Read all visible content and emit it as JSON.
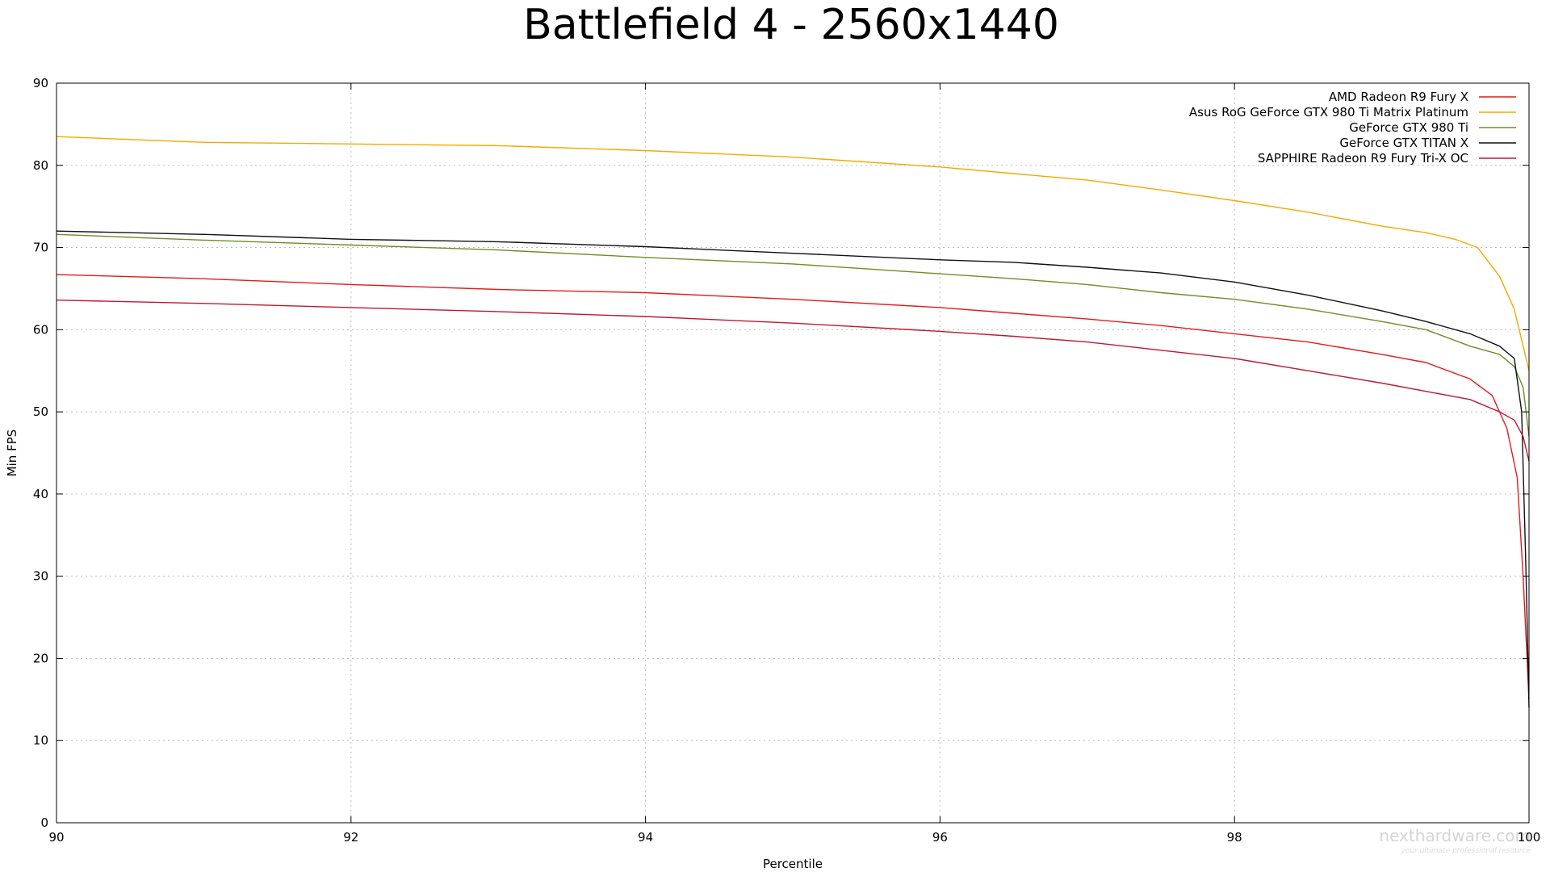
{
  "watermark": {
    "text": "nexthardware.com",
    "tagline": "your ultimate professional resource"
  },
  "chart_data": {
    "type": "line",
    "title": "Battlefield 4 - 2560x1440",
    "xlabel": "Percentile",
    "ylabel": "Min FPS",
    "xlim": [
      90,
      100
    ],
    "ylim": [
      0,
      90
    ],
    "xticks": [
      "90",
      "92",
      "94",
      "96",
      "98",
      "100"
    ],
    "yticks": [
      "0",
      "10",
      "20",
      "30",
      "40",
      "50",
      "60",
      "70",
      "80",
      "90"
    ],
    "grid": true,
    "legend_position": "top-right",
    "series": [
      {
        "name": "AMD Radeon R9 Fury X",
        "color": "#e41a1c",
        "points": [
          [
            90,
            66.7
          ],
          [
            91,
            66.2
          ],
          [
            92,
            65.5
          ],
          [
            93,
            64.9
          ],
          [
            94,
            64.5
          ],
          [
            95,
            63.7
          ],
          [
            96,
            62.7
          ],
          [
            96.5,
            62.0
          ],
          [
            97,
            61.3
          ],
          [
            97.5,
            60.5
          ],
          [
            98,
            59.5
          ],
          [
            98.5,
            58.5
          ],
          [
            99,
            57.0
          ],
          [
            99.3,
            56.0
          ],
          [
            99.6,
            54.0
          ],
          [
            99.75,
            52.0
          ],
          [
            99.85,
            48.0
          ],
          [
            99.92,
            42.0
          ],
          [
            99.96,
            30.0
          ],
          [
            100,
            15.0
          ]
        ]
      },
      {
        "name": "Asus RoG GeForce GTX 980 Ti Matrix Platinum",
        "color": "#f5a800",
        "points": [
          [
            90,
            83.5
          ],
          [
            91,
            82.8
          ],
          [
            92,
            82.6
          ],
          [
            93,
            82.4
          ],
          [
            94,
            81.8
          ],
          [
            95,
            81.0
          ],
          [
            96,
            79.8
          ],
          [
            96.5,
            79.0
          ],
          [
            97,
            78.2
          ],
          [
            97.5,
            77.0
          ],
          [
            98,
            75.7
          ],
          [
            98.5,
            74.3
          ],
          [
            99,
            72.6
          ],
          [
            99.3,
            71.8
          ],
          [
            99.5,
            71.0
          ],
          [
            99.65,
            70.0
          ],
          [
            99.8,
            66.5
          ],
          [
            99.9,
            62.5
          ],
          [
            99.96,
            58.0
          ],
          [
            100,
            55.0
          ]
        ]
      },
      {
        "name": "GeForce GTX 980 Ti",
        "color": "#6b8e23",
        "points": [
          [
            90,
            71.6
          ],
          [
            91,
            70.9
          ],
          [
            92,
            70.3
          ],
          [
            93,
            69.7
          ],
          [
            94,
            68.8
          ],
          [
            95,
            68.0
          ],
          [
            96,
            66.8
          ],
          [
            96.5,
            66.2
          ],
          [
            97,
            65.5
          ],
          [
            97.5,
            64.5
          ],
          [
            98,
            63.7
          ],
          [
            98.5,
            62.5
          ],
          [
            99,
            61.0
          ],
          [
            99.3,
            60.0
          ],
          [
            99.6,
            58.0
          ],
          [
            99.8,
            57.0
          ],
          [
            99.9,
            55.5
          ],
          [
            99.96,
            53.0
          ],
          [
            100,
            47.0
          ]
        ]
      },
      {
        "name": "GeForce GTX TITAN X",
        "color": "#111111",
        "points": [
          [
            90,
            72.0
          ],
          [
            91,
            71.6
          ],
          [
            92,
            71.0
          ],
          [
            93,
            70.7
          ],
          [
            94,
            70.1
          ],
          [
            95,
            69.3
          ],
          [
            96,
            68.5
          ],
          [
            96.5,
            68.2
          ],
          [
            97,
            67.6
          ],
          [
            97.5,
            66.9
          ],
          [
            98,
            65.8
          ],
          [
            98.5,
            64.2
          ],
          [
            99,
            62.3
          ],
          [
            99.3,
            61.0
          ],
          [
            99.6,
            59.5
          ],
          [
            99.8,
            58.0
          ],
          [
            99.9,
            56.5
          ],
          [
            99.95,
            50.0
          ],
          [
            99.98,
            30.0
          ],
          [
            100,
            14.0
          ]
        ]
      },
      {
        "name": "SAPPHIRE Radeon R9 Fury Tri-X OC",
        "color": "#c0182f",
        "points": [
          [
            90,
            63.6
          ],
          [
            91,
            63.2
          ],
          [
            92,
            62.7
          ],
          [
            93,
            62.2
          ],
          [
            94,
            61.6
          ],
          [
            95,
            60.8
          ],
          [
            96,
            59.8
          ],
          [
            96.5,
            59.2
          ],
          [
            97,
            58.5
          ],
          [
            97.5,
            57.5
          ],
          [
            98,
            56.5
          ],
          [
            98.5,
            55.0
          ],
          [
            99,
            53.5
          ],
          [
            99.3,
            52.5
          ],
          [
            99.6,
            51.5
          ],
          [
            99.8,
            50.0
          ],
          [
            99.9,
            49.0
          ],
          [
            99.96,
            47.0
          ],
          [
            100,
            44.0
          ]
        ]
      }
    ]
  }
}
